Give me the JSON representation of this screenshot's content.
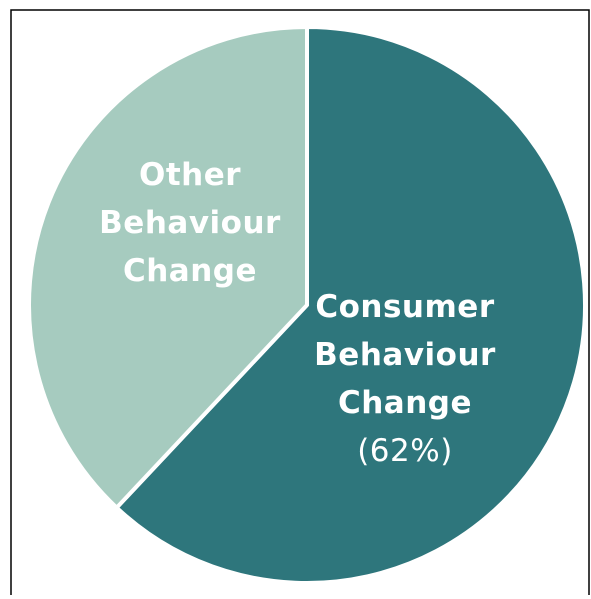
{
  "chart_data": {
    "type": "pie",
    "categories": [
      "Consumer Behaviour Change",
      "Other Behaviour Change"
    ],
    "values": [
      62,
      38
    ],
    "value_labels": [
      "(62%)",
      null
    ],
    "colors": [
      "#2e767c",
      "#a6cbbf"
    ]
  }
}
